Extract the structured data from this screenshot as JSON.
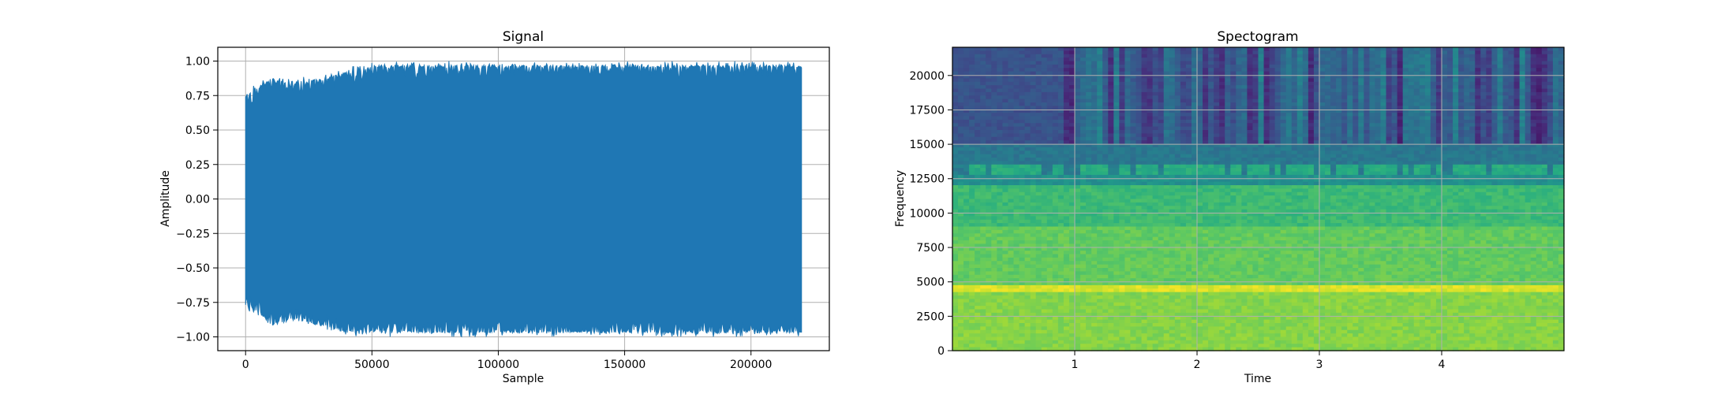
{
  "chart_data": [
    {
      "type": "line",
      "title": "Signal",
      "xlabel": "Sample",
      "ylabel": "Amplitude",
      "xlim": [
        -11000,
        231000
      ],
      "ylim": [
        -1.1,
        1.1
      ],
      "xticks": [
        0,
        50000,
        100000,
        150000,
        200000
      ],
      "xtick_labels": [
        "0",
        "50000",
        "100000",
        "150000",
        "200000"
      ],
      "yticks": [
        -1.0,
        -0.75,
        -0.5,
        -0.25,
        0.0,
        0.25,
        0.5,
        0.75,
        1.0
      ],
      "ytick_labels": [
        "−1.00",
        "−0.75",
        "−0.50",
        "−0.25",
        "0.00",
        "0.25",
        "0.50",
        "0.75",
        "1.00"
      ],
      "grid": true,
      "color": "#1f77b4",
      "series": [
        {
          "x": [
            0,
            5000,
            10000,
            20000,
            30000,
            40000,
            50000,
            60000,
            80000,
            100000,
            120000,
            150000,
            180000,
            200000,
            220000
          ],
          "y_max": [
            0.78,
            0.85,
            0.9,
            0.88,
            0.9,
            0.95,
            1.0,
            1.0,
            1.0,
            1.0,
            1.0,
            1.0,
            1.0,
            1.0,
            1.0
          ],
          "y_min": [
            -0.8,
            -0.85,
            -0.95,
            -0.9,
            -0.95,
            -1.0,
            -1.0,
            -1.0,
            -1.0,
            -1.0,
            -1.0,
            -1.0,
            -1.0,
            -1.0,
            -1.0
          ]
        }
      ]
    },
    {
      "type": "heatmap",
      "title": "Spectogram",
      "xlabel": "Time",
      "ylabel": "Frequency",
      "xlim": [
        0,
        5.0
      ],
      "ylim": [
        0,
        22050
      ],
      "xticks": [
        1,
        2,
        3,
        4
      ],
      "xtick_labels": [
        "1",
        "2",
        "3",
        "4"
      ],
      "yticks": [
        0,
        2500,
        5000,
        7500,
        10000,
        12500,
        15000,
        17500,
        20000
      ],
      "ytick_labels": [
        "0",
        "2500",
        "5000",
        "7500",
        "10000",
        "12500",
        "15000",
        "17500",
        "20000"
      ],
      "grid": true,
      "colormap": "viridis",
      "bands": [
        {
          "freq_range": [
            0,
            4200
          ],
          "level": 0.82
        },
        {
          "freq_range": [
            4200,
            4800
          ],
          "level": 0.95
        },
        {
          "freq_range": [
            4800,
            9000
          ],
          "level": 0.76
        },
        {
          "freq_range": [
            9000,
            12000
          ],
          "level": 0.68
        },
        {
          "freq_range": [
            12000,
            12800
          ],
          "level": 0.5
        },
        {
          "freq_range": [
            12800,
            13600
          ],
          "level": 0.62
        },
        {
          "freq_range": [
            13600,
            15000
          ],
          "level": 0.4
        },
        {
          "freq_range": [
            15000,
            22050
          ],
          "level": 0.28
        }
      ]
    }
  ]
}
